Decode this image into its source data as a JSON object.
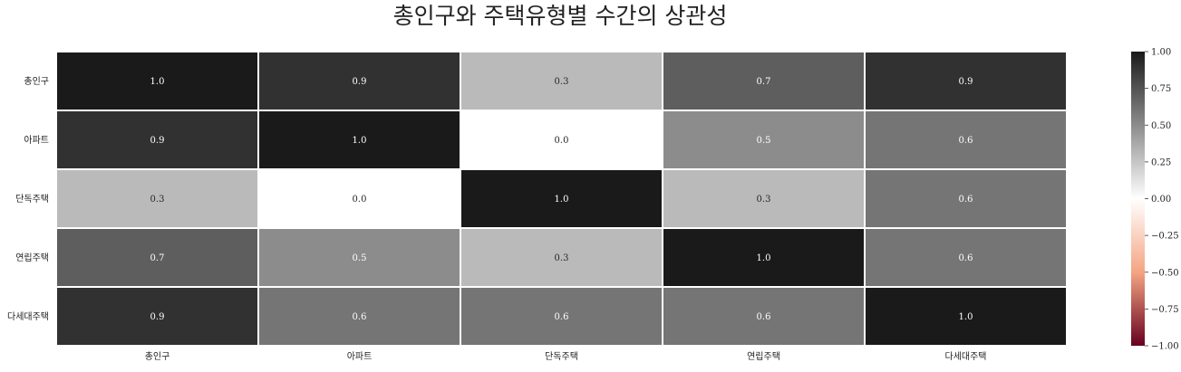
{
  "chart_data": {
    "type": "heatmap",
    "title": "총인구와 주택유형별 수간의 상관성",
    "xlabel": "",
    "ylabel": "",
    "rows": [
      "총인구",
      "아파트",
      "단독주택",
      "연립주택",
      "다세대주택"
    ],
    "columns": [
      "총인구",
      "아파트",
      "단독주택",
      "연립주택",
      "다세대주택"
    ],
    "values": [
      [
        1.0,
        0.9,
        0.3,
        0.7,
        0.9
      ],
      [
        0.9,
        1.0,
        0.0,
        0.5,
        0.6
      ],
      [
        0.3,
        0.0,
        1.0,
        0.3,
        0.6
      ],
      [
        0.7,
        0.5,
        0.3,
        1.0,
        0.6
      ],
      [
        0.9,
        0.6,
        0.6,
        0.6,
        1.0
      ]
    ],
    "labels": [
      [
        "1.0",
        "0.9",
        "0.3",
        "0.7",
        "0.9"
      ],
      [
        "0.9",
        "1.0",
        "0.0",
        "0.5",
        "0.6"
      ],
      [
        "0.3",
        "0.0",
        "1.0",
        "0.3",
        "0.6"
      ],
      [
        "0.7",
        "0.5",
        "0.3",
        "1.0",
        "0.6"
      ],
      [
        "0.9",
        "0.6",
        "0.6",
        "0.6",
        "1.0"
      ]
    ],
    "value_range": [
      -1.0,
      1.0
    ],
    "colorbar": {
      "ticks": [
        1.0,
        0.75,
        0.5,
        0.25,
        0.0,
        -0.25,
        -0.5,
        -0.75,
        -1.0
      ],
      "tick_labels": [
        "1.00",
        "0.75",
        "0.50",
        "0.25",
        "0.00",
        "−0.25",
        "−0.50",
        "−0.75",
        "−1.00"
      ],
      "placement": "right"
    },
    "colormap": {
      "negative_end": "#67001f",
      "negative_mid": "#f4a582",
      "center": "#ffffff",
      "positive_mid": "#8c8c8c",
      "positive_end": "#1a1a1a"
    },
    "cell_border_color": "#ffffff",
    "grid": false
  }
}
